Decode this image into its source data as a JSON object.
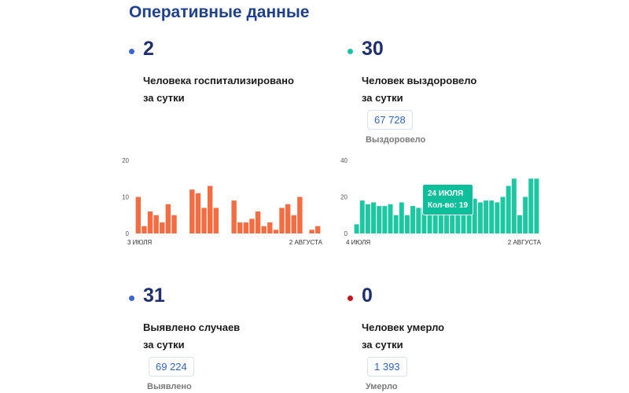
{
  "header": {
    "title": "Оперативные данные"
  },
  "colors": {
    "hospitalized_dot": "#3b64d6",
    "recovered_dot": "#19c4a4",
    "cases_dot": "#3b64d6",
    "deaths_dot": "#c4161c",
    "orange_bar": "#f36c42",
    "teal_bar": "#1bc8a2"
  },
  "stats": {
    "hospitalized": {
      "value": "2",
      "label_line1": "Человека госпитализировано",
      "label_line2": "за сутки"
    },
    "recovered": {
      "value": "30",
      "label_line1": "Человек выздоровело",
      "label_line2": "за сутки",
      "total": "67 728",
      "total_caption": "Выздоровело"
    },
    "cases": {
      "value": "31",
      "label_line1": "Выявлено случаев",
      "label_line2": "за сутки",
      "total": "69 224",
      "total_caption": "Выявлено"
    },
    "deaths": {
      "value": "0",
      "label_line1": "Человек умерло",
      "label_line2": "за сутки",
      "total": "1 393",
      "total_caption": "Умерло"
    }
  },
  "tooltip": {
    "date": "24 ИЮЛЯ",
    "count_label": "Кол-во: 19"
  },
  "chart_data": [
    {
      "type": "bar",
      "series": [
        {
          "values": [
            10,
            2,
            6,
            5,
            3,
            8,
            5,
            null,
            null,
            12,
            11,
            7,
            13,
            7,
            null,
            null,
            9,
            3,
            3,
            4,
            6,
            2,
            3,
            1,
            7,
            8,
            5,
            10,
            null,
            1,
            2
          ]
        }
      ],
      "x_start_label": "3 ИЮЛЯ",
      "x_end_label": "2 АВГУСТА",
      "y_ticks": [
        "0",
        "10",
        "20"
      ],
      "ylim": [
        0,
        20
      ]
    },
    {
      "type": "bar",
      "series": [
        {
          "values": [
            5,
            18,
            16,
            17,
            15,
            15,
            16,
            10,
            17,
            10,
            15,
            14,
            14,
            13,
            12,
            13,
            17,
            17,
            16,
            15,
            19,
            19,
            17,
            18,
            18,
            17,
            20,
            26,
            30,
            10,
            20,
            30,
            30
          ]
        }
      ],
      "x_start_label": "4 ИЮЛЯ",
      "x_end_label": "2 АВГУСТА",
      "y_ticks": [
        "0",
        "20",
        "40"
      ],
      "ylim": [
        0,
        40
      ]
    }
  ]
}
